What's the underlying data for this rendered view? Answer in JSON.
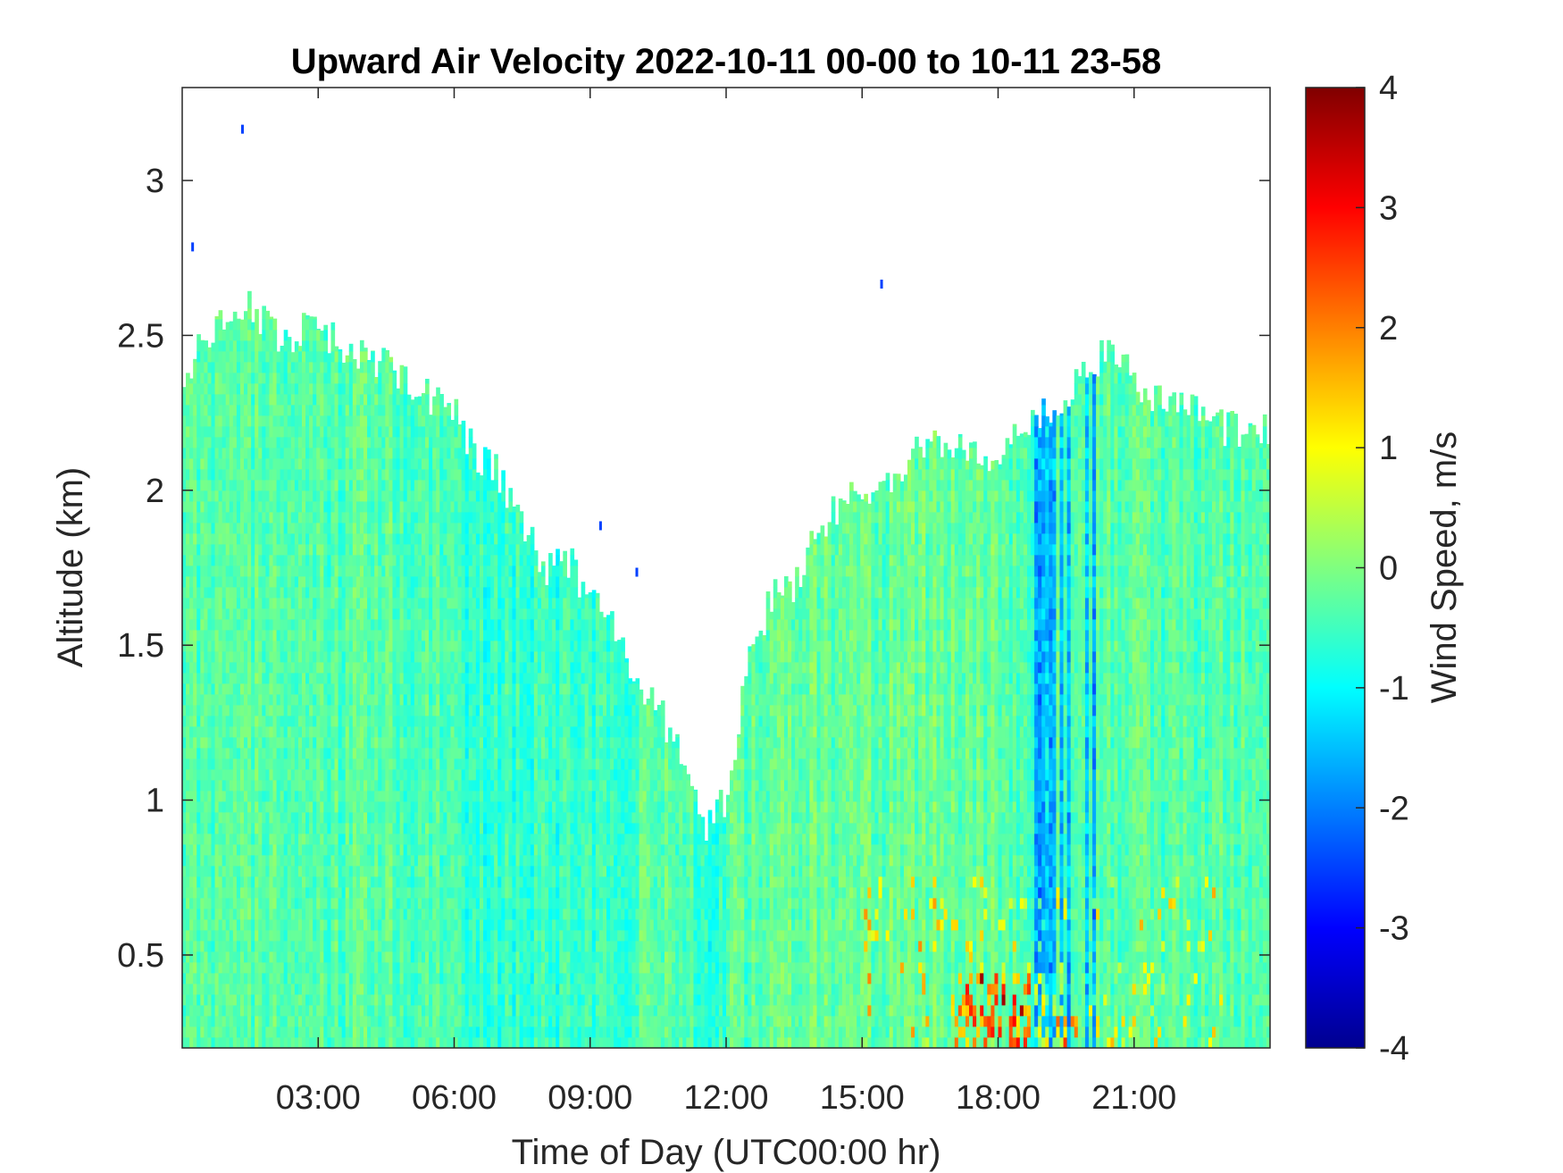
{
  "chart_data": {
    "type": "heatmap",
    "title": "Upward Air Velocity 2022-10-11 00-00 to 10-11 23-58",
    "xlabel": "Time of Day (UTC00:00 hr)",
    "ylabel": "Altitude (km)",
    "xlim_hours": [
      0,
      24
    ],
    "ylim": [
      0.2,
      3.3
    ],
    "x_ticks": [
      {
        "hour": 3,
        "label": "03:00"
      },
      {
        "hour": 6,
        "label": "06:00"
      },
      {
        "hour": 9,
        "label": "09:00"
      },
      {
        "hour": 12,
        "label": "12:00"
      },
      {
        "hour": 15,
        "label": "15:00"
      },
      {
        "hour": 18,
        "label": "18:00"
      },
      {
        "hour": 21,
        "label": "21:00"
      }
    ],
    "y_ticks": [
      {
        "value": 0.5,
        "label": "0.5"
      },
      {
        "value": 1,
        "label": "1"
      },
      {
        "value": 1.5,
        "label": "1.5"
      },
      {
        "value": 2,
        "label": "2"
      },
      {
        "value": 2.5,
        "label": "2.5"
      },
      {
        "value": 3,
        "label": "3"
      }
    ],
    "colorbar": {
      "label": "Wind Speed, m/s",
      "range": [
        -4,
        4
      ],
      "colormap": "jet",
      "ticks": [
        {
          "value": 4,
          "label": "4"
        },
        {
          "value": 3,
          "label": "3"
        },
        {
          "value": 2,
          "label": "2"
        },
        {
          "value": 1,
          "label": "1"
        },
        {
          "value": 0,
          "label": "0"
        },
        {
          "value": -1,
          "label": "-1"
        },
        {
          "value": -2,
          "label": "-2"
        },
        {
          "value": -3,
          "label": "-3"
        },
        {
          "value": -4,
          "label": "-4"
        }
      ]
    },
    "data_top_altitude_km": {
      "hours": [
        0.0,
        0.5,
        1.0,
        1.5,
        2.0,
        2.5,
        3.0,
        3.5,
        4.0,
        4.5,
        5.0,
        5.5,
        6.0,
        6.5,
        7.0,
        7.5,
        8.0,
        8.5,
        9.0,
        9.5,
        10.0,
        10.5,
        11.0,
        11.5,
        12.0,
        12.5,
        13.0,
        13.5,
        14.0,
        14.5,
        15.0,
        15.5,
        16.0,
        16.5,
        17.0,
        17.5,
        18.0,
        18.5,
        19.0,
        19.5,
        20.0,
        20.5,
        21.0,
        21.5,
        22.0,
        22.5,
        23.0,
        23.5,
        24.0
      ],
      "top_km": [
        2.35,
        2.5,
        2.55,
        2.6,
        2.5,
        2.5,
        2.55,
        2.45,
        2.45,
        2.4,
        2.35,
        2.3,
        2.25,
        2.1,
        2.05,
        1.9,
        1.75,
        1.78,
        1.65,
        1.55,
        1.4,
        1.3,
        1.15,
        0.9,
        1.0,
        1.45,
        1.65,
        1.7,
        1.85,
        1.95,
        2.0,
        2.0,
        2.1,
        2.15,
        2.15,
        2.12,
        2.1,
        2.2,
        2.25,
        2.3,
        2.4,
        2.45,
        2.35,
        2.3,
        2.3,
        2.25,
        2.2,
        2.2,
        2.2
      ]
    },
    "notes_visible": "Mostly green/cyan (about -1 to 0 m/s); blue bands near 18:30-20:30; red/orange streaks near surface around 17:30-19:30"
  },
  "colors": {
    "axis": "#262626",
    "background": "#ffffff"
  }
}
